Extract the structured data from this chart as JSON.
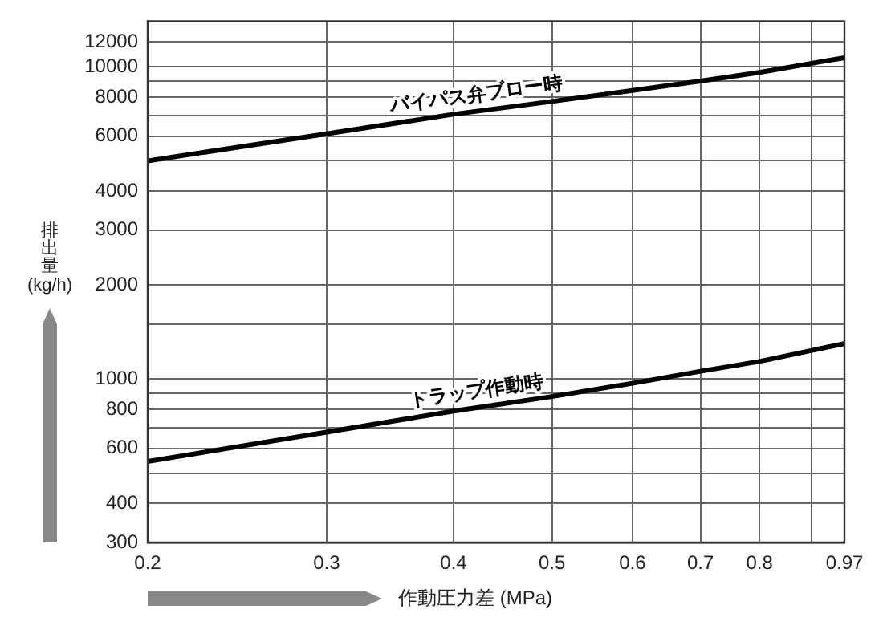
{
  "chart_data": {
    "type": "line",
    "xlabel": "作動圧力差 (MPa)",
    "ylabel": "排出量 (kg/h)",
    "log": "xy",
    "xlim": [
      0.2,
      0.97
    ],
    "ylim": [
      300,
      14000
    ],
    "xticks": [
      0.2,
      0.3,
      0.4,
      0.5,
      0.6,
      0.7,
      0.8,
      {
        "value": 0.9,
        "label": null
      },
      0.97
    ],
    "yticks": [
      300,
      400,
      {
        "value": 500,
        "label": null
      },
      600,
      {
        "value": 700,
        "label": null
      },
      800,
      {
        "value": 900,
        "label": null
      },
      1000,
      {
        "value": 1500,
        "label": null
      },
      2000,
      3000,
      4000,
      {
        "value": 5000,
        "label": null
      },
      6000,
      {
        "value": 7000,
        "label": null
      },
      8000,
      {
        "value": 9000,
        "label": null
      },
      10000,
      12000
    ],
    "grid": true,
    "marker": "none",
    "line_style": "solid",
    "x": [
      0.2,
      0.3,
      0.4,
      0.5,
      0.6,
      0.7,
      0.8,
      0.97
    ],
    "series": [
      {
        "name": "バイパス弁ブロー時",
        "color": "#000000",
        "values": [
          5000,
          6100,
          7050,
          7750,
          8400,
          9000,
          9600,
          10700
        ]
      },
      {
        "name": "トラップ作動時",
        "color": "#000000",
        "values": [
          545,
          677,
          790,
          880,
          970,
          1060,
          1140,
          1300
        ]
      }
    ]
  }
}
